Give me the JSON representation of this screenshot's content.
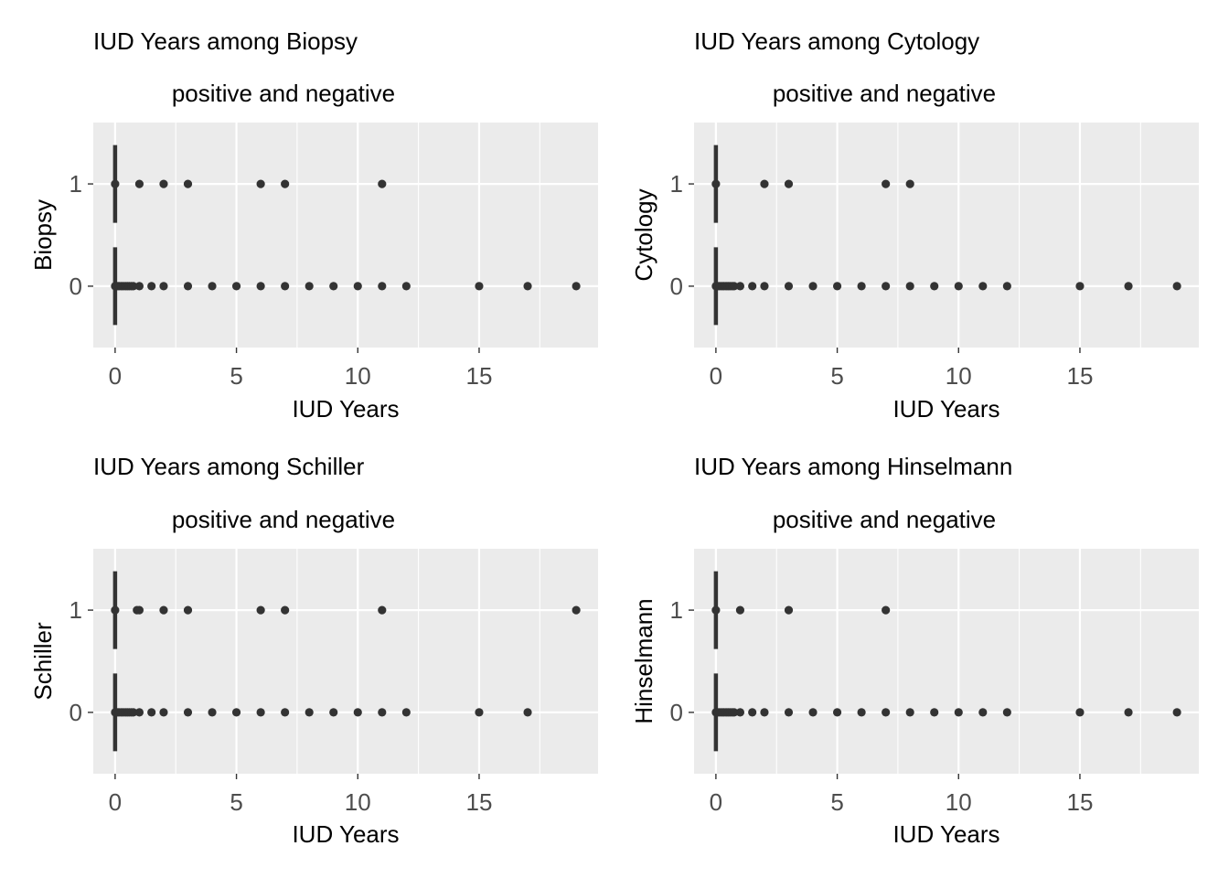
{
  "chart_data": [
    {
      "type": "scatter",
      "title": "IUD Years among Biopsy",
      "subtitle": "positive and negative",
      "xlabel": "IUD Years",
      "ylabel": "Biopsy",
      "xlim": [
        -0.9,
        19.9
      ],
      "ylim": [
        -0.6,
        1.6
      ],
      "xticks": [
        0,
        5,
        10,
        15
      ],
      "xticks_minor": [
        2.5,
        7.5,
        12.5,
        17.5
      ],
      "yticks": [
        0,
        1
      ],
      "grid": true,
      "point_color": "#333333",
      "panel_background": "#ebebeb",
      "series": [
        {
          "y_group": 1,
          "x": [
            0,
            1,
            2,
            3,
            6,
            7,
            11
          ]
        },
        {
          "y_group": 0,
          "x": [
            0,
            0.08,
            0.16,
            0.25,
            0.33,
            0.42,
            0.5,
            0.58,
            0.67,
            0.75,
            1,
            1.5,
            2,
            3,
            4,
            5,
            6,
            7,
            8,
            9,
            10,
            11,
            12,
            15,
            17,
            19
          ]
        }
      ],
      "vertical_bars_at_zero": true
    },
    {
      "type": "scatter",
      "title": "IUD Years among Cytology",
      "subtitle": "positive and negative",
      "xlabel": "IUD Years",
      "ylabel": "Cytology",
      "xlim": [
        -0.9,
        19.9
      ],
      "ylim": [
        -0.6,
        1.6
      ],
      "xticks": [
        0,
        5,
        10,
        15
      ],
      "xticks_minor": [
        2.5,
        7.5,
        12.5,
        17.5
      ],
      "yticks": [
        0,
        1
      ],
      "grid": true,
      "point_color": "#333333",
      "panel_background": "#ebebeb",
      "series": [
        {
          "y_group": 1,
          "x": [
            0,
            2,
            3,
            7,
            8
          ]
        },
        {
          "y_group": 0,
          "x": [
            0,
            0.08,
            0.16,
            0.25,
            0.33,
            0.42,
            0.5,
            0.58,
            0.67,
            0.75,
            1,
            1.5,
            2,
            3,
            4,
            5,
            6,
            7,
            8,
            9,
            10,
            11,
            12,
            15,
            17,
            19
          ]
        }
      ],
      "vertical_bars_at_zero": true
    },
    {
      "type": "scatter",
      "title": "IUD Years among Schiller",
      "subtitle": "positive and negative",
      "xlabel": "IUD Years",
      "ylabel": "Schiller",
      "xlim": [
        -0.9,
        19.9
      ],
      "ylim": [
        -0.6,
        1.6
      ],
      "xticks": [
        0,
        5,
        10,
        15
      ],
      "xticks_minor": [
        2.5,
        7.5,
        12.5,
        17.5
      ],
      "yticks": [
        0,
        1
      ],
      "grid": true,
      "point_color": "#333333",
      "panel_background": "#ebebeb",
      "series": [
        {
          "y_group": 1,
          "x": [
            0,
            0.9,
            1,
            2,
            3,
            6,
            7,
            11,
            19
          ]
        },
        {
          "y_group": 0,
          "x": [
            0,
            0.08,
            0.16,
            0.25,
            0.33,
            0.42,
            0.5,
            0.58,
            0.67,
            0.75,
            1,
            1.5,
            2,
            3,
            4,
            5,
            6,
            7,
            8,
            9,
            10,
            11,
            12,
            15,
            17
          ]
        }
      ],
      "vertical_bars_at_zero": true
    },
    {
      "type": "scatter",
      "title": "IUD Years among Hinselmann",
      "subtitle": "positive and negative",
      "xlabel": "IUD Years",
      "ylabel": "Hinselmann",
      "xlim": [
        -0.9,
        19.9
      ],
      "ylim": [
        -0.6,
        1.6
      ],
      "xticks": [
        0,
        5,
        10,
        15
      ],
      "xticks_minor": [
        2.5,
        7.5,
        12.5,
        17.5
      ],
      "yticks": [
        0,
        1
      ],
      "grid": true,
      "point_color": "#333333",
      "panel_background": "#ebebeb",
      "series": [
        {
          "y_group": 1,
          "x": [
            0,
            1,
            3,
            7
          ]
        },
        {
          "y_group": 0,
          "x": [
            0,
            0.08,
            0.16,
            0.25,
            0.33,
            0.42,
            0.5,
            0.58,
            0.67,
            0.75,
            1,
            1.5,
            2,
            3,
            4,
            5,
            6,
            7,
            8,
            9,
            10,
            11,
            12,
            15,
            17,
            19
          ]
        }
      ],
      "vertical_bars_at_zero": true
    }
  ]
}
